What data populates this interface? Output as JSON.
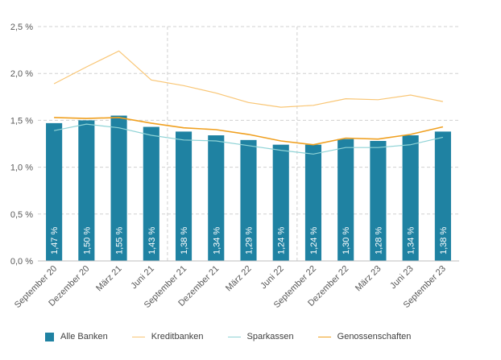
{
  "chart_data": {
    "type": "bar",
    "categories": [
      "September 20",
      "Dezember 20",
      "März 21",
      "Juni 21",
      "September 21",
      "Dezember 21",
      "März 22",
      "Juni 22",
      "September 22",
      "Dezember 22",
      "März 23",
      "Juni 23",
      "September 23"
    ],
    "series": [
      {
        "name": "Alle Banken",
        "type": "bar",
        "color": "#1f82a2",
        "values": [
          1.47,
          1.5,
          1.55,
          1.43,
          1.38,
          1.34,
          1.29,
          1.24,
          1.24,
          1.3,
          1.28,
          1.34,
          1.38
        ],
        "labels": [
          "1,47 %",
          "1,50 %",
          "1,55 %",
          "1,43 %",
          "1,38 %",
          "1,34 %",
          "1,29 %",
          "1,24 %",
          "1,24 %",
          "1,30 %",
          "1,28 %",
          "1,34 %",
          "1,38 %"
        ]
      },
      {
        "name": "Kreditbanken",
        "type": "line",
        "color": "#f9c675",
        "values": [
          1.89,
          2.07,
          2.24,
          1.93,
          1.87,
          1.79,
          1.69,
          1.64,
          1.66,
          1.73,
          1.72,
          1.77,
          1.7
        ]
      },
      {
        "name": "Sparkassen",
        "type": "line",
        "color": "#8fd3d6",
        "values": [
          1.39,
          1.46,
          1.42,
          1.34,
          1.29,
          1.28,
          1.23,
          1.18,
          1.14,
          1.21,
          1.21,
          1.24,
          1.32
        ]
      },
      {
        "name": "Genossenschaften",
        "type": "line",
        "color": "#f0a020",
        "values": [
          1.53,
          1.52,
          1.53,
          1.47,
          1.42,
          1.4,
          1.35,
          1.28,
          1.24,
          1.31,
          1.3,
          1.35,
          1.43
        ]
      }
    ],
    "yticks": [
      0,
      0.5,
      1.0,
      1.5,
      2.0,
      2.5
    ],
    "ytick_labels": [
      "0,0 %",
      "0,5 %",
      "1,0 %",
      "1,5 %",
      "2,0 %",
      "2,5 %"
    ],
    "ylim": [
      0,
      2.5
    ],
    "grid": "horizontal dashed, vertical dashed every 4 categories",
    "legend_position": "bottom"
  }
}
